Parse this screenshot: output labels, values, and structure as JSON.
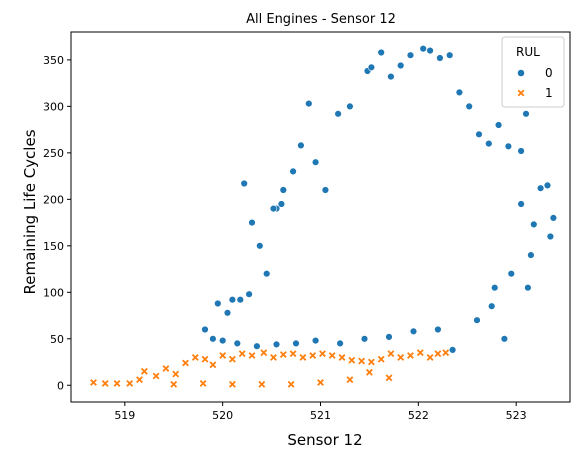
{
  "chart_data": {
    "type": "scatter",
    "title": "All Engines - Sensor 12",
    "xlabel": "Sensor 12",
    "ylabel": "Remaining Life Cycles",
    "xlim": [
      518.45,
      523.55
    ],
    "ylim": [
      -18,
      380
    ],
    "xticks": [
      519,
      520,
      521,
      522,
      523
    ],
    "yticks": [
      0,
      50,
      100,
      150,
      200,
      250,
      300,
      350
    ],
    "grid": false,
    "legend": {
      "title": "RUL",
      "placement": "top-right",
      "entries": [
        {
          "label": "0",
          "color": "#1f77b4",
          "marker": "circle"
        },
        {
          "label": "1",
          "color": "#ff7f0e",
          "marker": "x"
        }
      ]
    },
    "series": [
      {
        "name": "0",
        "color": "#1f77b4",
        "marker": "circle",
        "points": [
          [
            519.82,
            60
          ],
          [
            519.9,
            50
          ],
          [
            519.95,
            88
          ],
          [
            520.05,
            78
          ],
          [
            520.1,
            92
          ],
          [
            520.18,
            92
          ],
          [
            520.22,
            217
          ],
          [
            520.3,
            175
          ],
          [
            520.27,
            98
          ],
          [
            520.38,
            150
          ],
          [
            520.45,
            120
          ],
          [
            520.55,
            190
          ],
          [
            520.62,
            210
          ],
          [
            520.72,
            230
          ],
          [
            520.8,
            258
          ],
          [
            520.88,
            303
          ],
          [
            520.95,
            240
          ],
          [
            521.05,
            210
          ],
          [
            521.18,
            292
          ],
          [
            521.3,
            300
          ],
          [
            521.48,
            338
          ],
          [
            521.52,
            342
          ],
          [
            521.62,
            358
          ],
          [
            521.72,
            332
          ],
          [
            521.82,
            344
          ],
          [
            521.92,
            355
          ],
          [
            522.05,
            362
          ],
          [
            522.12,
            360
          ],
          [
            522.22,
            352
          ],
          [
            522.32,
            355
          ],
          [
            522.42,
            315
          ],
          [
            522.52,
            300
          ],
          [
            522.62,
            270
          ],
          [
            522.72,
            260
          ],
          [
            522.82,
            280
          ],
          [
            522.92,
            257
          ],
          [
            523.05,
            252
          ],
          [
            523.1,
            292
          ],
          [
            523.25,
            212
          ],
          [
            523.32,
            215
          ],
          [
            523.38,
            180
          ],
          [
            523.35,
            160
          ],
          [
            523.15,
            140
          ],
          [
            523.12,
            105
          ],
          [
            522.95,
            120
          ],
          [
            522.88,
            50
          ],
          [
            522.75,
            85
          ],
          [
            522.6,
            70
          ],
          [
            522.35,
            38
          ],
          [
            522.2,
            60
          ],
          [
            521.95,
            58
          ],
          [
            521.7,
            52
          ],
          [
            521.45,
            50
          ],
          [
            521.2,
            45
          ],
          [
            520.95,
            48
          ],
          [
            520.75,
            45
          ],
          [
            520.55,
            44
          ],
          [
            520.35,
            42
          ],
          [
            520.15,
            45
          ],
          [
            520.0,
            48
          ],
          [
            522.78,
            105
          ],
          [
            523.05,
            195
          ],
          [
            523.18,
            173
          ],
          [
            520.52,
            190
          ],
          [
            520.6,
            195
          ]
        ]
      },
      {
        "name": "1",
        "color": "#ff7f0e",
        "marker": "x",
        "points": [
          [
            518.68,
            3
          ],
          [
            518.8,
            2
          ],
          [
            518.92,
            2
          ],
          [
            519.05,
            2
          ],
          [
            519.15,
            6
          ],
          [
            519.2,
            15
          ],
          [
            519.32,
            10
          ],
          [
            519.42,
            18
          ],
          [
            519.52,
            12
          ],
          [
            519.62,
            24
          ],
          [
            519.72,
            30
          ],
          [
            519.82,
            28
          ],
          [
            519.9,
            22
          ],
          [
            520.0,
            32
          ],
          [
            520.1,
            28
          ],
          [
            520.2,
            34
          ],
          [
            520.3,
            32
          ],
          [
            520.42,
            35
          ],
          [
            520.52,
            30
          ],
          [
            520.62,
            33
          ],
          [
            520.72,
            34
          ],
          [
            520.82,
            30
          ],
          [
            520.92,
            32
          ],
          [
            521.02,
            34
          ],
          [
            521.12,
            32
          ],
          [
            521.22,
            30
          ],
          [
            521.32,
            27
          ],
          [
            521.42,
            26
          ],
          [
            521.52,
            25
          ],
          [
            521.62,
            28
          ],
          [
            521.72,
            34
          ],
          [
            521.82,
            30
          ],
          [
            521.92,
            32
          ],
          [
            522.02,
            35
          ],
          [
            522.12,
            30
          ],
          [
            522.2,
            34
          ],
          [
            522.28,
            35
          ],
          [
            521.7,
            8
          ],
          [
            521.5,
            14
          ],
          [
            521.3,
            6
          ],
          [
            521.0,
            3
          ],
          [
            520.7,
            1
          ],
          [
            520.4,
            1
          ],
          [
            520.1,
            1
          ],
          [
            519.8,
            2
          ],
          [
            519.5,
            1
          ]
        ]
      }
    ]
  }
}
